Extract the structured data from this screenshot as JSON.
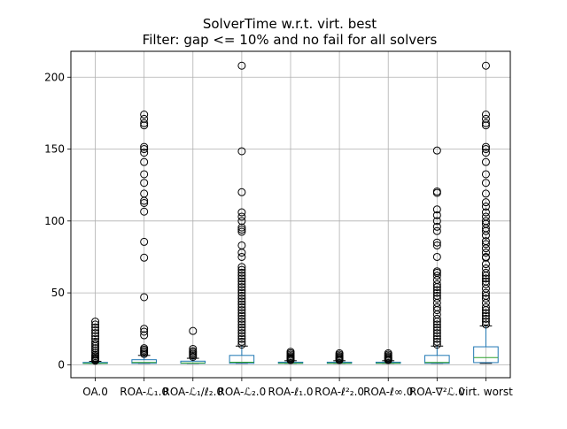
{
  "chart_data": {
    "type": "box",
    "title": "SolverTime w.r.t. virt. best",
    "subtitle": "Filter: gap <= 10% and no fail for all solvers",
    "xlabel": "",
    "ylabel": "",
    "ylim": [
      -9,
      218
    ],
    "yticks": [
      0,
      50,
      100,
      150,
      200
    ],
    "grid": true,
    "colors": {
      "box": "#1f77b4",
      "median": "#2ca02c",
      "grid": "#b0b0b0",
      "outlier": "#000000"
    },
    "categories": [
      "OA.0",
      "ROA-ℒ₁.0",
      "ROA-ℒ₁/ℓ₂.0",
      "ROA-ℒ₂.0",
      "ROA-ℓ₁.0",
      "ROA-ℓ²₂.0",
      "ROA-ℓ∞.0",
      "ROA-∇²ℒ.0",
      "virt. worst"
    ],
    "boxes": [
      {
        "q1": 1.0,
        "median": 1.0,
        "q3": 1.6,
        "whisker_low": 1.0,
        "whisker_high": 2.4,
        "outliers": [
          2.8,
          3.5,
          4.2,
          5.0,
          6.0,
          7.0,
          8.5,
          10.0,
          11.5,
          13.0,
          14.5,
          16.0,
          18.0,
          20.0,
          22.0,
          24.0,
          26.0,
          28.0,
          30.0
        ]
      },
      {
        "q1": 1.0,
        "median": 1.6,
        "q3": 3.5,
        "whisker_low": 1.0,
        "whisker_high": 6.5,
        "outliers": [
          7.5,
          8.5,
          9.5,
          10.5,
          11.5,
          20.5,
          23.0,
          25.0,
          47.0,
          74.5,
          85.5,
          106.5,
          112.5,
          114.0,
          119.0,
          126.5,
          132.5,
          141.0,
          147.5,
          150.0,
          151.5,
          166.5,
          168.0,
          171.0,
          174.0
        ]
      },
      {
        "q1": 1.0,
        "median": 1.2,
        "q3": 2.5,
        "whisker_low": 1.0,
        "whisker_high": 4.5,
        "outliers": [
          5.5,
          6.5,
          7.5,
          8.5,
          9.5,
          11.0,
          23.5
        ]
      },
      {
        "q1": 1.0,
        "median": 1.8,
        "q3": 6.5,
        "whisker_low": 1.0,
        "whisker_high": 13.0,
        "outliers": [
          14.0,
          16.0,
          18.0,
          20.0,
          22.0,
          24.0,
          26.0,
          28.0,
          30.0,
          32.0,
          34.0,
          36.0,
          38.0,
          40.0,
          42.0,
          44.0,
          46.0,
          48.0,
          50.0,
          52.0,
          54.0,
          56.0,
          58.0,
          60.0,
          62.0,
          64.0,
          66.0,
          68.0,
          75.0,
          78.0,
          83.0,
          92.5,
          94.0,
          95.5,
          100.0,
          103.0,
          106.0,
          120.0,
          148.5,
          208.0
        ]
      },
      {
        "q1": 1.0,
        "median": 1.1,
        "q3": 1.8,
        "whisker_low": 1.0,
        "whisker_high": 2.8,
        "outliers": [
          3.2,
          3.8,
          4.5,
          5.2,
          6.0,
          7.0,
          8.0,
          9.0
        ]
      },
      {
        "q1": 1.0,
        "median": 1.1,
        "q3": 1.8,
        "whisker_low": 1.0,
        "whisker_high": 2.8,
        "outliers": [
          3.2,
          3.8,
          4.5,
          5.2,
          6.0,
          7.0,
          8.0
        ]
      },
      {
        "q1": 1.0,
        "median": 1.1,
        "q3": 1.8,
        "whisker_low": 1.0,
        "whisker_high": 2.8,
        "outliers": [
          3.2,
          3.8,
          4.5,
          5.2,
          6.0,
          7.0,
          8.0
        ]
      },
      {
        "q1": 1.0,
        "median": 1.6,
        "q3": 6.5,
        "whisker_low": 1.0,
        "whisker_high": 13.0,
        "outliers": [
          14.0,
          16.0,
          18.0,
          20.0,
          22.0,
          24.0,
          26.0,
          28.0,
          30.0,
          32.0,
          35.0,
          38.0,
          40.0,
          43.0,
          46.0,
          48.0,
          50.0,
          52.0,
          54.0,
          56.0,
          59.0,
          62.0,
          64.0,
          65.0,
          75.0,
          83.0,
          85.0,
          93.0,
          96.0,
          100.0,
          104.0,
          108.0,
          119.5,
          120.5,
          149.0
        ]
      },
      {
        "q1": 1.5,
        "median": 5.0,
        "q3": 12.5,
        "whisker_low": 1.0,
        "whisker_high": 27.0,
        "outliers": [
          28.0,
          30.0,
          32.0,
          34.0,
          36.0,
          38.0,
          40.0,
          43.0,
          46.0,
          48.0,
          50.0,
          53.0,
          56.0,
          58.0,
          60.0,
          62.0,
          64.0,
          67.0,
          70.0,
          74.5,
          75.0,
          78.0,
          81.0,
          84.0,
          86.0,
          90.0,
          93.0,
          95.0,
          98.0,
          100.0,
          103.0,
          106.0,
          110.0,
          113.0,
          119.0,
          126.5,
          132.5,
          141.0,
          147.5,
          150.0,
          151.5,
          166.5,
          168.0,
          171.0,
          174.0,
          208.0
        ]
      }
    ]
  }
}
